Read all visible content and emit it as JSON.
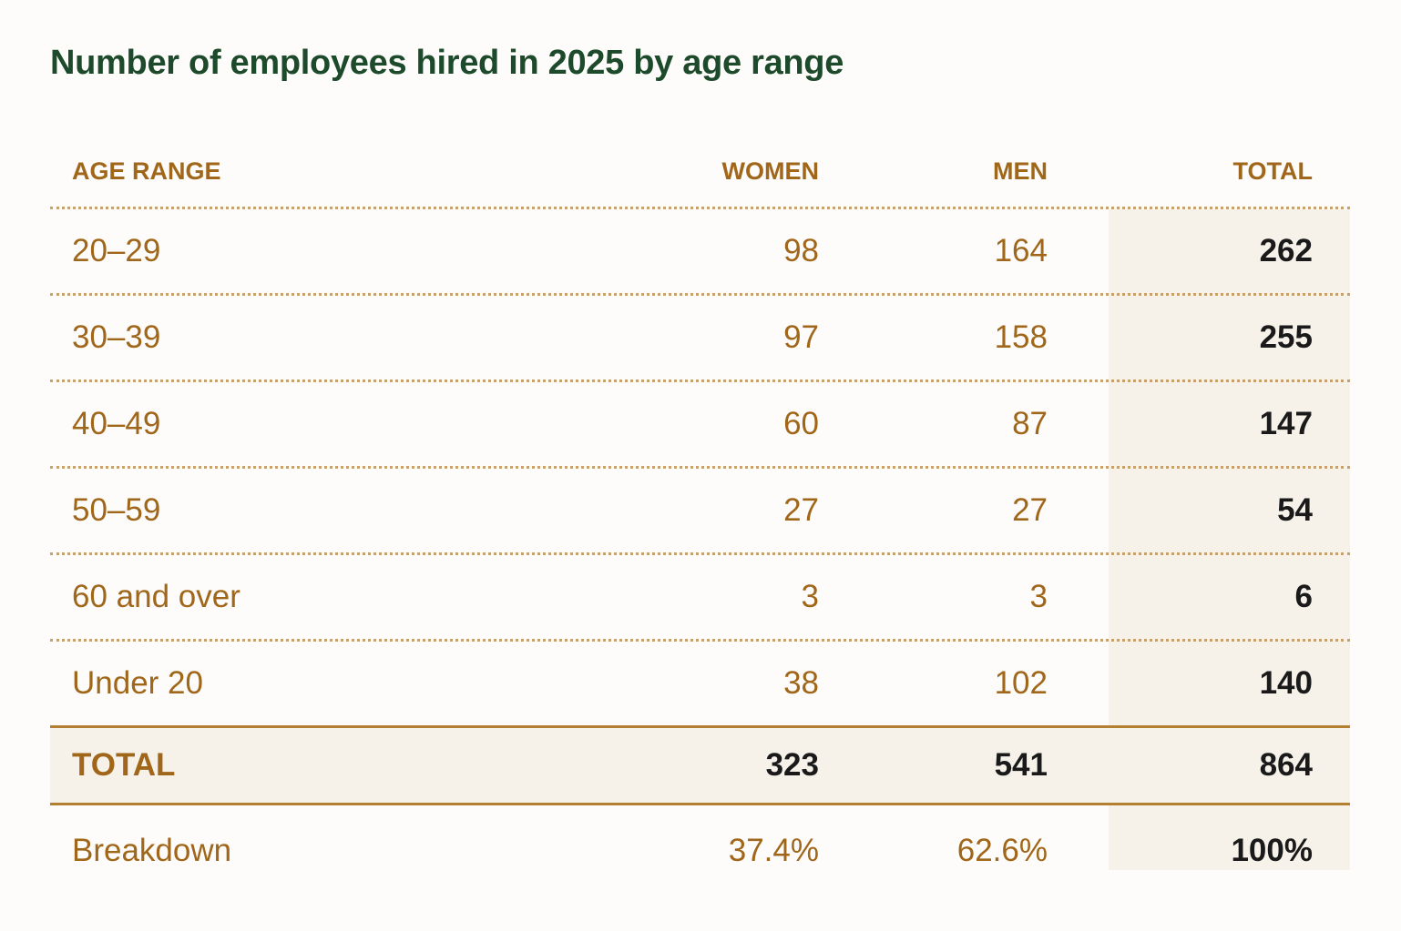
{
  "title": "Number of employees hired in 2025 by age range",
  "colors": {
    "title": "#1d4a2b",
    "accent": "#a0661a",
    "rule": "#b57f31",
    "shade": "#f6f2ea",
    "strong_text": "#1a1a1a"
  },
  "chart_data": {
    "type": "table",
    "title": "Number of employees hired in 2025 by age range",
    "columns": [
      "AGE RANGE",
      "WOMEN",
      "MEN",
      "TOTAL"
    ],
    "rows": [
      {
        "age": "20–29",
        "women": "98",
        "men": "164",
        "total": "262"
      },
      {
        "age": "30–39",
        "women": "97",
        "men": "158",
        "total": "255"
      },
      {
        "age": "40–49",
        "women": "60",
        "men": "87",
        "total": "147"
      },
      {
        "age": "50–59",
        "women": "27",
        "men": "27",
        "total": "54"
      },
      {
        "age": "60 and over",
        "women": "3",
        "men": "3",
        "total": "6"
      },
      {
        "age": "Under 20",
        "women": "38",
        "men": "102",
        "total": "140"
      }
    ],
    "totals": {
      "label": "TOTAL",
      "women": "323",
      "men": "541",
      "total": "864"
    },
    "breakdown": {
      "label": "Breakdown",
      "women": "37.4%",
      "men": "62.6%",
      "total": "100%"
    }
  }
}
